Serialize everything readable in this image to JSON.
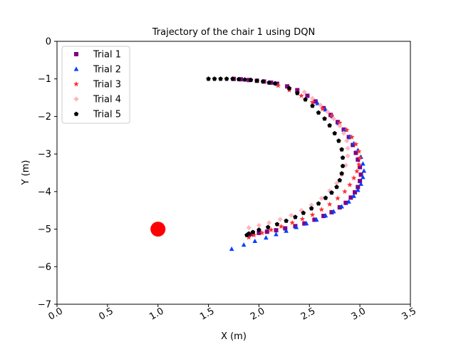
{
  "chart_data": {
    "type": "scatter",
    "title": "Trajectory of the chair 1 using DQN",
    "xlabel": "X (m)",
    "ylabel": "Y (m)",
    "xlim": [
      0.0,
      3.5
    ],
    "ylim": [
      -7,
      0
    ],
    "xticks": [
      "0.0",
      "0.5",
      "1.0",
      "1.5",
      "2.0",
      "2.5",
      "3.0",
      "3.5"
    ],
    "xtick_values": [
      0.0,
      0.5,
      1.0,
      1.5,
      2.0,
      2.5,
      3.0,
      3.5
    ],
    "yticks": [
      "0",
      "−1",
      "−2",
      "−3",
      "−4",
      "−5",
      "−6",
      "−7"
    ],
    "ytick_values": [
      0,
      -1,
      -2,
      -3,
      -4,
      -5,
      -6,
      -7
    ],
    "xtick_rotation_deg": -30,
    "grid": false,
    "legend_position": "top-left",
    "obstacle": {
      "x": 1.0,
      "y": -5.0,
      "color": "#ff0000"
    },
    "series": [
      {
        "name": "Trial 1",
        "marker": "square",
        "color": "#800080",
        "x": [
          1.75,
          1.82,
          1.9,
          1.98,
          2.05,
          2.12,
          2.18,
          2.28,
          2.38,
          2.48,
          2.56,
          2.64,
          2.71,
          2.78,
          2.84,
          2.89,
          2.93,
          2.96,
          2.98,
          3.0,
          3.01,
          3.0,
          2.98,
          2.95,
          2.91,
          2.86,
          2.8,
          2.72,
          2.64,
          2.55,
          2.45,
          2.36,
          2.26,
          2.17,
          2.08,
          2.0,
          1.94,
          1.9
        ],
        "y": [
          -1.0,
          -1.01,
          -1.03,
          -1.05,
          -1.07,
          -1.1,
          -1.13,
          -1.2,
          -1.3,
          -1.45,
          -1.6,
          -1.78,
          -1.96,
          -2.15,
          -2.35,
          -2.55,
          -2.76,
          -2.97,
          -3.15,
          -3.35,
          -3.55,
          -3.72,
          -3.88,
          -4.02,
          -4.16,
          -4.3,
          -4.42,
          -4.55,
          -4.65,
          -4.75,
          -4.85,
          -4.92,
          -4.98,
          -5.03,
          -5.07,
          -5.1,
          -5.13,
          -5.15
        ]
      },
      {
        "name": "Trial 2",
        "marker": "triangle",
        "color": "#0040ff",
        "x": [
          2.58,
          2.66,
          2.73,
          2.79,
          2.85,
          2.9,
          2.94,
          2.98,
          3.01,
          3.03,
          3.04,
          3.03,
          3.01,
          2.98,
          2.94,
          2.89,
          2.82,
          2.74,
          2.66,
          2.57,
          2.47,
          2.37,
          2.27,
          2.17,
          2.07,
          1.96,
          1.85,
          1.73
        ],
        "y": [
          -1.65,
          -1.82,
          -2.0,
          -2.18,
          -2.36,
          -2.54,
          -2.72,
          -2.9,
          -3.08,
          -3.26,
          -3.45,
          -3.62,
          -3.8,
          -3.96,
          -4.12,
          -4.27,
          -4.4,
          -4.53,
          -4.64,
          -4.75,
          -4.85,
          -4.95,
          -5.05,
          -5.14,
          -5.23,
          -5.32,
          -5.42,
          -5.53
        ]
      },
      {
        "name": "Trial 3",
        "marker": "star",
        "color": "#ff3030",
        "x": [
          2.19,
          2.3,
          2.42,
          2.53,
          2.63,
          2.72,
          2.8,
          2.87,
          2.92,
          2.96,
          2.99,
          3.0,
          2.99,
          2.97,
          2.94,
          2.9,
          2.85,
          2.78,
          2.7,
          2.62,
          2.53,
          2.43,
          2.33,
          2.22,
          2.12,
          2.03,
          1.95,
          1.9
        ],
        "y": [
          -1.18,
          -1.3,
          -1.45,
          -1.62,
          -1.8,
          -1.98,
          -2.17,
          -2.36,
          -2.55,
          -2.74,
          -2.93,
          -3.1,
          -3.28,
          -3.46,
          -3.64,
          -3.82,
          -4.0,
          -4.18,
          -4.34,
          -4.48,
          -4.62,
          -4.73,
          -4.83,
          -4.93,
          -5.02,
          -5.1,
          -5.16,
          -5.22
        ]
      },
      {
        "name": "Trial 4",
        "marker": "diamond",
        "color": "#ffb6c1",
        "x": [
          2.45,
          2.53,
          2.61,
          2.68,
          2.74,
          2.8,
          2.84,
          2.87,
          2.88,
          2.88,
          2.86,
          2.82,
          2.77,
          2.7,
          2.62,
          2.52,
          2.42,
          2.32,
          2.21,
          2.1,
          2.0,
          1.9
        ],
        "y": [
          -1.35,
          -1.52,
          -1.7,
          -1.88,
          -2.06,
          -2.25,
          -2.45,
          -2.65,
          -2.85,
          -3.05,
          -3.3,
          -3.55,
          -3.78,
          -3.98,
          -4.18,
          -4.36,
          -4.5,
          -4.63,
          -4.74,
          -4.83,
          -4.9,
          -4.96
        ]
      },
      {
        "name": "Trial 5",
        "marker": "pentagon",
        "color": "#000000",
        "x": [
          1.5,
          1.56,
          1.62,
          1.68,
          1.74,
          1.8,
          1.86,
          1.92,
          1.98,
          2.04,
          2.1,
          2.16,
          2.3,
          2.38,
          2.46,
          2.53,
          2.59,
          2.65,
          2.7,
          2.75,
          2.79,
          2.82,
          2.83,
          2.83,
          2.82,
          2.8,
          2.77,
          2.72,
          2.66,
          2.59,
          2.52,
          2.44,
          2.36,
          2.27,
          2.18,
          2.09,
          2.0,
          1.94,
          1.9,
          1.88
        ],
        "y": [
          -1.0,
          -1.0,
          -1.0,
          -1.0,
          -1.0,
          -1.01,
          -1.02,
          -1.03,
          -1.05,
          -1.07,
          -1.1,
          -1.12,
          -1.25,
          -1.38,
          -1.55,
          -1.72,
          -1.9,
          -2.06,
          -2.24,
          -2.45,
          -2.65,
          -2.88,
          -3.1,
          -3.32,
          -3.52,
          -3.7,
          -3.88,
          -4.03,
          -4.17,
          -4.32,
          -4.45,
          -4.57,
          -4.68,
          -4.78,
          -4.87,
          -4.95,
          -5.02,
          -5.08,
          -5.12,
          -5.16
        ]
      }
    ]
  }
}
